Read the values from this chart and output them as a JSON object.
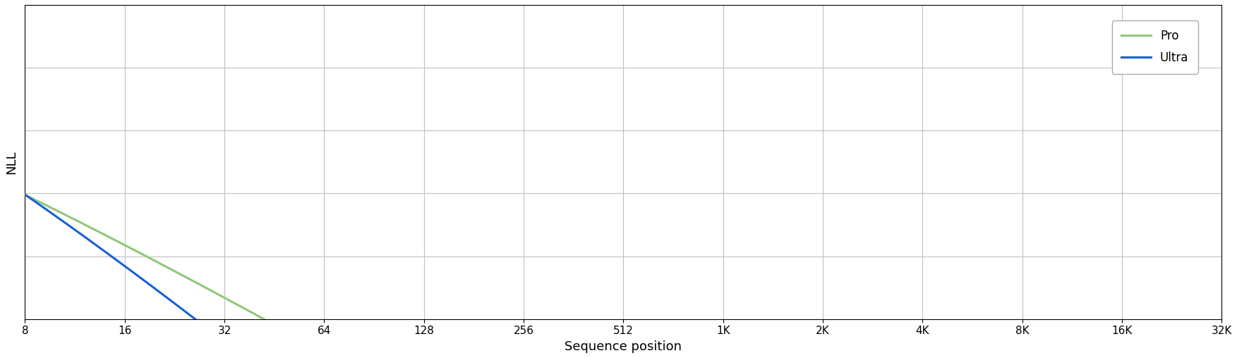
{
  "title": "",
  "xlabel": "Sequence position",
  "ylabel": "NLL",
  "x_tick_labels": [
    "8",
    "16",
    "32",
    "64",
    "128",
    "256",
    "512",
    "1K",
    "2K",
    "4K",
    "8K",
    "16K",
    "32K"
  ],
  "x_tick_values": [
    8,
    16,
    32,
    64,
    128,
    256,
    512,
    1024,
    2048,
    4096,
    8192,
    16384,
    32768
  ],
  "pro_color": "#90c878",
  "ultra_color": "#1a5fd4",
  "background_color": "#ffffff",
  "grid_color": "#c0c0c0",
  "legend_labels": [
    "Pro",
    "Ultra"
  ],
  "figsize": [
    17.53,
    5.08
  ],
  "dpi": 100,
  "linewidth": 2.2,
  "pro_a": 4.8,
  "pro_b": 0.52,
  "pro_c": 1.18,
  "ultra_a": 5.5,
  "ultra_b": 0.68,
  "ultra_c": 1.22,
  "ylim_bottom": 1.0,
  "ylim_top": 5.8
}
